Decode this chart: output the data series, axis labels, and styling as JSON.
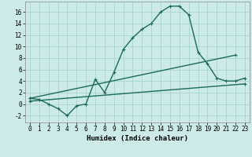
{
  "xlabel": "Humidex (Indice chaleur)",
  "bg_color": "#cceae7",
  "grid_color": "#aad4d0",
  "line_color": "#1a6b5a",
  "xlim": [
    -0.5,
    23.5
  ],
  "ylim": [
    -3.2,
    17.8
  ],
  "xticks": [
    0,
    1,
    2,
    3,
    4,
    5,
    6,
    7,
    8,
    9,
    10,
    11,
    12,
    13,
    14,
    15,
    16,
    17,
    18,
    19,
    20,
    21,
    22,
    23
  ],
  "yticks": [
    -2,
    0,
    2,
    4,
    6,
    8,
    10,
    12,
    14,
    16
  ],
  "line1_x": [
    0,
    1,
    2,
    3,
    4,
    5,
    6,
    7,
    8,
    9,
    10,
    11,
    12,
    13,
    14,
    15,
    16,
    17,
    18,
    19,
    20,
    21,
    22,
    23
  ],
  "line1_y": [
    1.0,
    0.8,
    0.0,
    -0.8,
    -2.0,
    -0.3,
    0.0,
    4.3,
    2.0,
    5.5,
    9.5,
    11.5,
    13.0,
    14.0,
    16.0,
    17.0,
    17.0,
    15.5,
    9.0,
    7.0,
    4.5,
    4.0,
    4.0,
    4.5
  ],
  "line2_x": [
    0,
    22
  ],
  "line2_y": [
    1.0,
    8.5
  ],
  "line3_x": [
    0,
    23
  ],
  "line3_y": [
    0.5,
    3.5
  ],
  "marker_size": 3,
  "linewidth": 1.0,
  "tick_fontsize": 5.5,
  "xlabel_fontsize": 6.5
}
